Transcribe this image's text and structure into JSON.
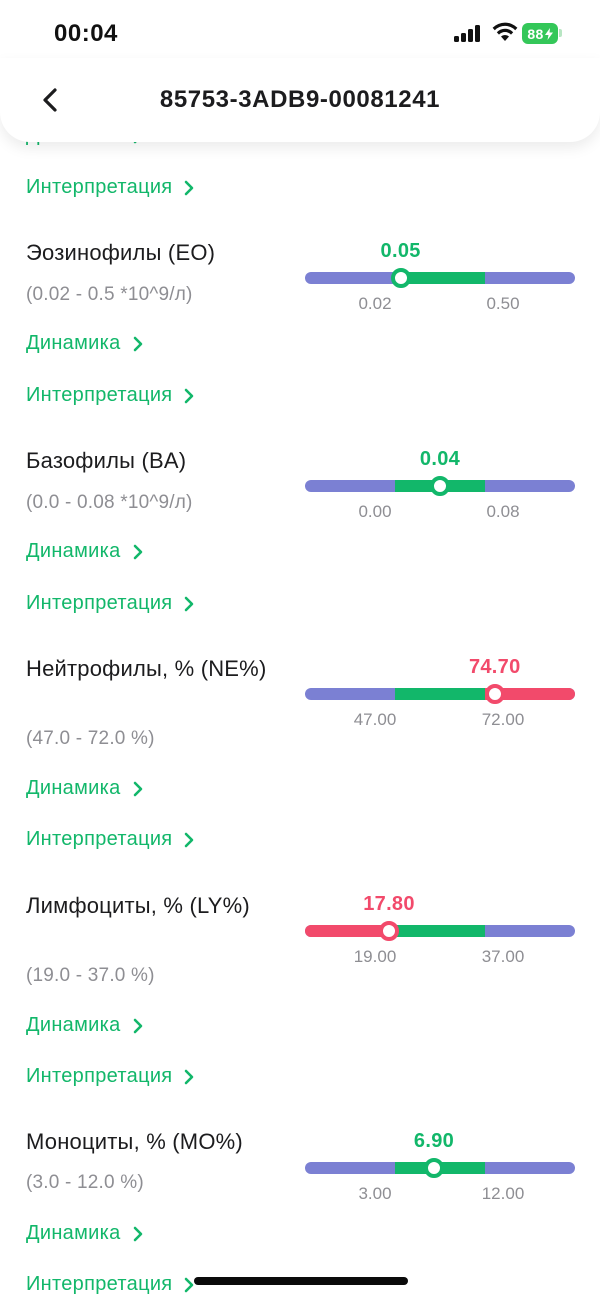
{
  "status_bar": {
    "time": "00:04",
    "battery": "88"
  },
  "header": {
    "title": "85753-3ADB9-00081241"
  },
  "colors": {
    "accent": "#12b76a",
    "high": "#f24a6b",
    "low_range": "#7b80d3",
    "normal_range": "#12b76a",
    "muted": "#8e8e93"
  },
  "partial_top": {
    "dynamics_label": "Динамика",
    "interpretation_label": "Интерпретация"
  },
  "tests": [
    {
      "name": "Эозинофилы (EO)",
      "range": "(0.02 - 0.5 *10^9/л)",
      "value": "0.05",
      "value_num": 0.05,
      "low": "0.02",
      "high": "0.50",
      "status": "normal",
      "dynamics_label": "Динамика",
      "interpretation_label": "Интерпретация"
    },
    {
      "name": "Базофилы (BA)",
      "range": "(0.0 - 0.08 *10^9/л)",
      "value": "0.04",
      "value_num": 0.04,
      "low": "0.00",
      "high": "0.08",
      "status": "normal",
      "dynamics_label": "Динамика",
      "interpretation_label": "Интерпретация"
    },
    {
      "name": "Нейтрофилы, % (NE%)",
      "range": "(47.0 - 72.0 %)",
      "value": "74.70",
      "value_num": 74.7,
      "low": "47.00",
      "high": "72.00",
      "status": "high",
      "dynamics_label": "Динамика",
      "interpretation_label": "Интерпретация"
    },
    {
      "name": "Лимфоциты, % (LY%)",
      "range": "(19.0 - 37.0 %)",
      "value": "17.80",
      "value_num": 17.8,
      "low": "19.00",
      "high": "37.00",
      "status": "low",
      "dynamics_label": "Динамика",
      "interpretation_label": "Интерпретация"
    },
    {
      "name": "Моноциты, % (MO%)",
      "range": "(3.0 - 12.0 %)",
      "value": "6.90",
      "value_num": 6.9,
      "low": "3.00",
      "high": "12.00",
      "status": "normal",
      "dynamics_label": "Динамика",
      "interpretation_label": "Интерпретация"
    }
  ]
}
